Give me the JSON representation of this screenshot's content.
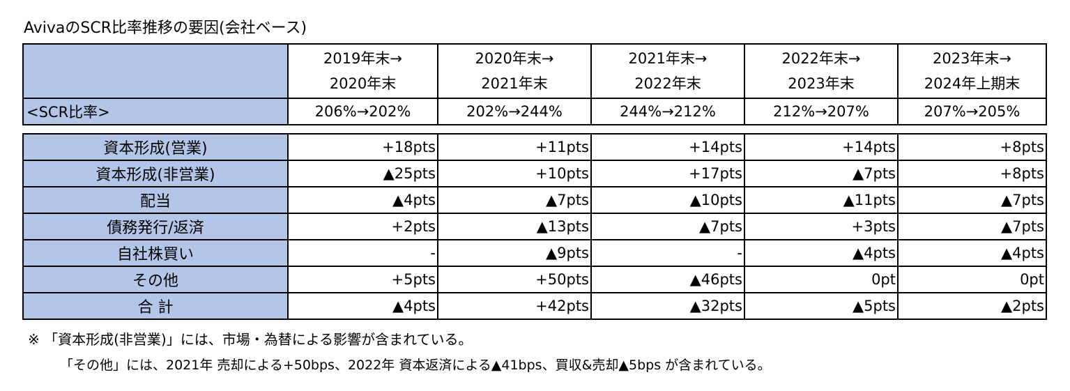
{
  "title": "AvivaのSCR比率推移の要因(会社ベース)",
  "periods": [
    {
      "line1": "2019年末→",
      "line2": "2020年末"
    },
    {
      "line1": "2020年末→",
      "line2": "2021年末"
    },
    {
      "line1": "2021年末→",
      "line2": "2022年末"
    },
    {
      "line1": "2022年末→",
      "line2": "2023年末"
    },
    {
      "line1": "2023年末→",
      "line2": "2024年上期末"
    }
  ],
  "scr_label": "<SCR比率>",
  "scr_values": [
    "206%→202%",
    "202%→244%",
    "244%→212%",
    "212%→207%",
    "207%→205%"
  ],
  "rows": [
    {
      "label": "資本形成(営業)",
      "values": [
        "+18pts",
        "+11pts",
        "+14pts",
        "+14pts",
        "+8pts"
      ]
    },
    {
      "label": "資本形成(非営業)",
      "values": [
        "▲25pts",
        "+10pts",
        "+17pts",
        "▲7pts",
        "+8pts"
      ]
    },
    {
      "label": "配当",
      "values": [
        "▲4pts",
        "▲7pts",
        "▲10pts",
        "▲11pts",
        "▲7pts"
      ]
    },
    {
      "label": "債務発行/返済",
      "values": [
        "+2pts",
        "▲13pts",
        "▲7pts",
        "+3pts",
        "▲7pts"
      ]
    },
    {
      "label": "自社株買い",
      "values": [
        "-",
        "▲9pts",
        "-",
        "▲4pts",
        "▲4pts"
      ]
    },
    {
      "label": "その他",
      "values": [
        "+5pts",
        "+50pts",
        "▲46pts",
        "0pt",
        "0pt"
      ]
    },
    {
      "label": "合 計",
      "values": [
        "▲4pts",
        "+42pts",
        "▲32pts",
        "▲5pts",
        "▲2pts"
      ]
    }
  ],
  "notes": {
    "line1": "※ 「資本形成(非営業)」には、市場・為替による影響が含まれている。",
    "line2": "「その他」には、2021年 売却による+50bps、2022年 資本返済による▲41bps、買収&売却▲5bps が含まれている。"
  },
  "colors": {
    "label_fill": "#b4c6e7",
    "border": "#000000"
  }
}
